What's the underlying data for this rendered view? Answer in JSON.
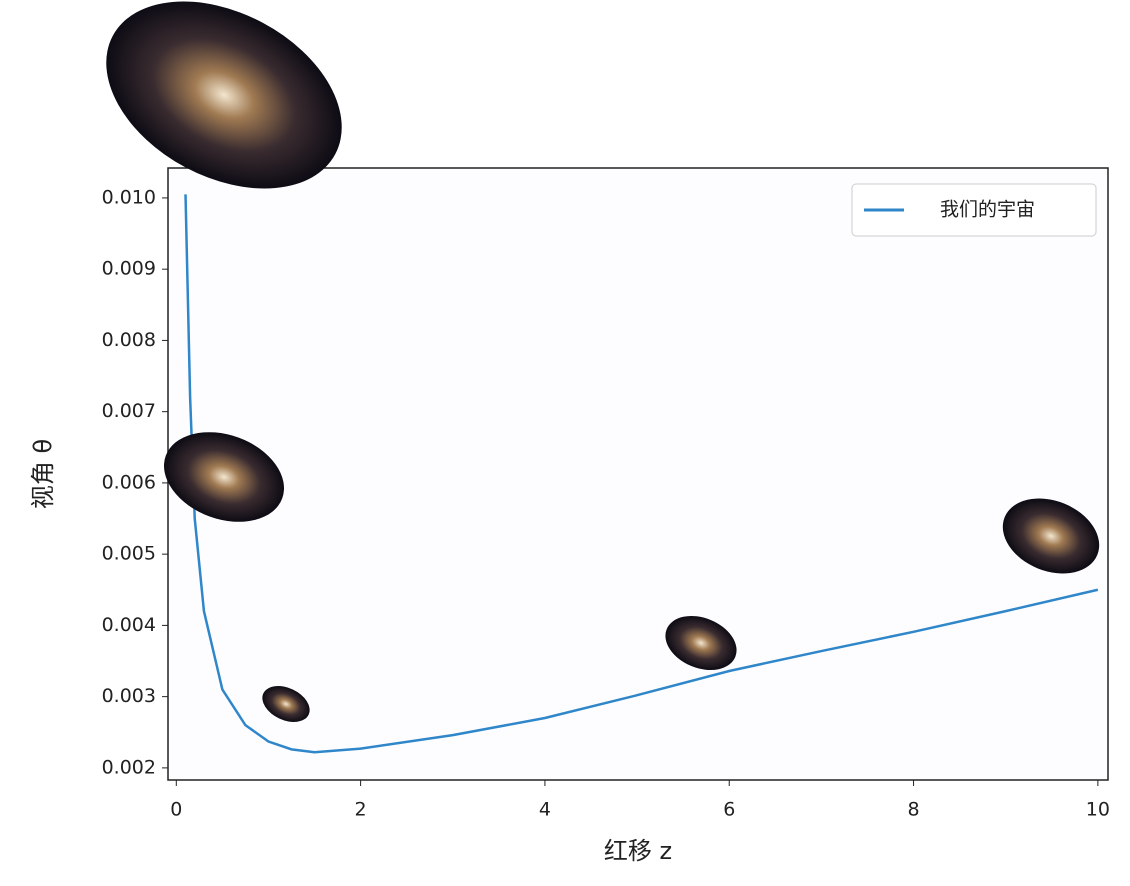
{
  "chart_data": {
    "type": "line",
    "x_label": "红移 z",
    "y_label": "视角 θ",
    "x": [
      0.1,
      0.15,
      0.2,
      0.3,
      0.5,
      0.75,
      1.0,
      1.25,
      1.5,
      2,
      3,
      4,
      5,
      6,
      7,
      8,
      9,
      10
    ],
    "series": [
      {
        "name": "我们的宇宙",
        "color": "#2f86c9",
        "values": [
          0.01005,
          0.0072,
          0.0055,
          0.0042,
          0.0031,
          0.0026,
          0.00237,
          0.00226,
          0.00222,
          0.00227,
          0.00246,
          0.0027,
          0.00302,
          0.00336,
          0.00364,
          0.00391,
          0.0042,
          0.0045
        ]
      }
    ],
    "xlim": [
      -0.09,
      10.11
    ],
    "xticks": [
      0,
      2,
      4,
      6,
      8,
      10
    ],
    "ylim": [
      0.00183,
      0.01042
    ],
    "yticks": [
      0.002,
      0.003,
      0.004,
      0.005,
      0.006,
      0.007,
      0.008,
      0.009,
      {
        "value": 0.01,
        "label": "0.010"
      }
    ],
    "legend": "upper right",
    "grid": false
  }
}
